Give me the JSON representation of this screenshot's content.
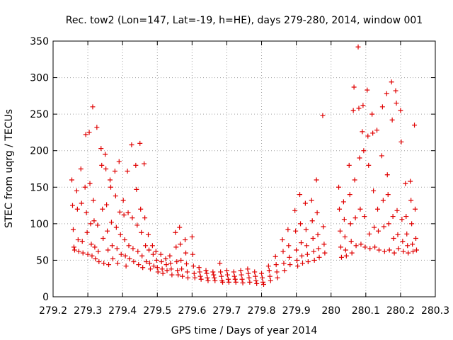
{
  "chart_data": {
    "type": "scatter",
    "title": "Rec. tow2 (Lon=147, Lat=-19, h=HE), days 279-280, 2014, window 001",
    "xlabel": "GPS time / Days of year 2014",
    "ylabel": "STEC from uqrg / TECUs",
    "xlim": [
      279.2,
      280.3
    ],
    "ylim": [
      0,
      350
    ],
    "xticks": [
      "279.2",
      "279.3",
      "279.4",
      "279.5",
      "279.6",
      "279.7",
      "279.8",
      "279.9",
      "280",
      "280.1",
      "280.2",
      "280.3"
    ],
    "yticks": [
      "0",
      "50",
      "100",
      "150",
      "200",
      "250",
      "300",
      "350"
    ],
    "grid": true,
    "marker": "+",
    "color": "#e00000",
    "series": [
      {
        "values": [
          [
            279.254,
            160
          ],
          [
            279.256,
            125
          ],
          [
            279.258,
            92
          ],
          [
            279.26,
            68
          ],
          [
            279.262,
            64
          ],
          [
            279.268,
            145
          ],
          [
            279.27,
            120
          ],
          [
            279.272,
            78
          ],
          [
            279.274,
            62
          ],
          [
            279.28,
            175
          ],
          [
            279.282,
            128
          ],
          [
            279.284,
            76
          ],
          [
            279.286,
            60
          ],
          [
            279.292,
            150
          ],
          [
            279.294,
            222
          ],
          [
            279.296,
            115
          ],
          [
            279.298,
            88
          ],
          [
            279.3,
            58
          ],
          [
            279.304,
            225
          ],
          [
            279.306,
            155
          ],
          [
            279.308,
            100
          ],
          [
            279.31,
            72
          ],
          [
            279.312,
            56
          ],
          [
            279.314,
            260
          ],
          [
            279.316,
            132
          ],
          [
            279.318,
            104
          ],
          [
            279.32,
            68
          ],
          [
            279.322,
            52
          ],
          [
            279.326,
            232
          ],
          [
            279.328,
            98
          ],
          [
            279.33,
            62
          ],
          [
            279.332,
            48
          ],
          [
            279.338,
            203
          ],
          [
            279.34,
            180
          ],
          [
            279.342,
            120
          ],
          [
            279.344,
            80
          ],
          [
            279.346,
            46
          ],
          [
            279.35,
            195
          ],
          [
            279.352,
            175
          ],
          [
            279.354,
            126
          ],
          [
            279.356,
            90
          ],
          [
            279.358,
            64
          ],
          [
            279.36,
            44
          ],
          [
            279.364,
            160
          ],
          [
            279.366,
            150
          ],
          [
            279.368,
            102
          ],
          [
            279.37,
            70
          ],
          [
            279.372,
            52
          ],
          [
            279.378,
            172
          ],
          [
            279.38,
            138
          ],
          [
            279.382,
            95
          ],
          [
            279.384,
            66
          ],
          [
            279.386,
            46
          ],
          [
            279.39,
            185
          ],
          [
            279.392,
            116
          ],
          [
            279.394,
            85
          ],
          [
            279.396,
            58
          ],
          [
            279.402,
            132
          ],
          [
            279.404,
            112
          ],
          [
            279.406,
            78
          ],
          [
            279.408,
            56
          ],
          [
            279.41,
            42
          ],
          [
            279.414,
            172
          ],
          [
            279.416,
            115
          ],
          [
            279.418,
            70
          ],
          [
            279.42,
            52
          ],
          [
            279.426,
            208
          ],
          [
            279.428,
            108
          ],
          [
            279.43,
            66
          ],
          [
            279.432,
            48
          ],
          [
            279.438,
            180
          ],
          [
            279.44,
            147
          ],
          [
            279.442,
            98
          ],
          [
            279.444,
            62
          ],
          [
            279.446,
            44
          ],
          [
            279.45,
            210
          ],
          [
            279.452,
            120
          ],
          [
            279.454,
            88
          ],
          [
            279.456,
            56
          ],
          [
            279.458,
            40
          ],
          [
            279.462,
            182
          ],
          [
            279.464,
            108
          ],
          [
            279.466,
            70
          ],
          [
            279.468,
            48
          ],
          [
            279.474,
            85
          ],
          [
            279.476,
            64
          ],
          [
            279.478,
            46
          ],
          [
            279.48,
            38
          ],
          [
            279.486,
            70
          ],
          [
            279.488,
            58
          ],
          [
            279.49,
            42
          ],
          [
            279.496,
            62
          ],
          [
            279.498,
            50
          ],
          [
            279.5,
            40
          ],
          [
            279.502,
            34
          ],
          [
            279.51,
            58
          ],
          [
            279.512,
            48
          ],
          [
            279.514,
            38
          ],
          [
            279.516,
            32
          ],
          [
            279.524,
            52
          ],
          [
            279.526,
            44
          ],
          [
            279.528,
            36
          ],
          [
            279.536,
            56
          ],
          [
            279.538,
            46
          ],
          [
            279.54,
            38
          ],
          [
            279.542,
            30
          ],
          [
            279.552,
            88
          ],
          [
            279.554,
            68
          ],
          [
            279.556,
            48
          ],
          [
            279.558,
            36
          ],
          [
            279.56,
            30
          ],
          [
            279.564,
            95
          ],
          [
            279.566,
            72
          ],
          [
            279.568,
            50
          ],
          [
            279.57,
            38
          ],
          [
            279.572,
            28
          ],
          [
            279.58,
            78
          ],
          [
            279.582,
            60
          ],
          [
            279.584,
            45
          ],
          [
            279.586,
            34
          ],
          [
            279.588,
            26
          ],
          [
            279.6,
            82
          ],
          [
            279.602,
            58
          ],
          [
            279.604,
            42
          ],
          [
            279.606,
            32
          ],
          [
            279.608,
            26
          ],
          [
            279.62,
            40
          ],
          [
            279.622,
            34
          ],
          [
            279.624,
            28
          ],
          [
            279.626,
            24
          ],
          [
            279.64,
            36
          ],
          [
            279.642,
            32
          ],
          [
            279.644,
            26
          ],
          [
            279.646,
            22
          ],
          [
            279.66,
            34
          ],
          [
            279.662,
            30
          ],
          [
            279.664,
            26
          ],
          [
            279.666,
            22
          ],
          [
            279.68,
            46
          ],
          [
            279.682,
            34
          ],
          [
            279.684,
            28
          ],
          [
            279.686,
            22
          ],
          [
            279.688,
            20
          ],
          [
            279.7,
            36
          ],
          [
            279.702,
            30
          ],
          [
            279.704,
            24
          ],
          [
            279.706,
            20
          ],
          [
            279.72,
            34
          ],
          [
            279.722,
            28
          ],
          [
            279.724,
            24
          ],
          [
            279.726,
            20
          ],
          [
            279.74,
            36
          ],
          [
            279.742,
            30
          ],
          [
            279.744,
            24
          ],
          [
            279.746,
            19
          ],
          [
            279.76,
            38
          ],
          [
            279.762,
            32
          ],
          [
            279.764,
            26
          ],
          [
            279.766,
            20
          ],
          [
            279.78,
            34
          ],
          [
            279.782,
            28
          ],
          [
            279.784,
            22
          ],
          [
            279.786,
            18
          ],
          [
            279.8,
            32
          ],
          [
            279.802,
            26
          ],
          [
            279.804,
            20
          ],
          [
            279.806,
            17
          ],
          [
            279.82,
            42
          ],
          [
            279.822,
            36
          ],
          [
            279.824,
            28
          ],
          [
            279.826,
            22
          ],
          [
            279.84,
            55
          ],
          [
            279.842,
            44
          ],
          [
            279.844,
            34
          ],
          [
            279.846,
            26
          ],
          [
            279.86,
            78
          ],
          [
            279.862,
            62
          ],
          [
            279.864,
            46
          ],
          [
            279.866,
            36
          ],
          [
            279.876,
            92
          ],
          [
            279.878,
            70
          ],
          [
            279.88,
            54
          ],
          [
            279.882,
            44
          ],
          [
            279.896,
            118
          ],
          [
            279.898,
            90
          ],
          [
            279.9,
            64
          ],
          [
            279.902,
            50
          ],
          [
            279.904,
            42
          ],
          [
            279.91,
            140
          ],
          [
            279.912,
            100
          ],
          [
            279.914,
            74
          ],
          [
            279.916,
            56
          ],
          [
            279.918,
            46
          ],
          [
            279.926,
            128
          ],
          [
            279.928,
            92
          ],
          [
            279.93,
            70
          ],
          [
            279.932,
            58
          ],
          [
            279.934,
            48
          ],
          [
            279.944,
            132
          ],
          [
            279.946,
            104
          ],
          [
            279.948,
            80
          ],
          [
            279.95,
            62
          ],
          [
            279.952,
            50
          ],
          [
            279.958,
            160
          ],
          [
            279.96,
            115
          ],
          [
            279.962,
            85
          ],
          [
            279.964,
            66
          ],
          [
            279.966,
            54
          ],
          [
            279.976,
            248
          ],
          [
            279.978,
            96
          ],
          [
            279.98,
            72
          ],
          [
            279.982,
            60
          ],
          [
            280.022,
            150
          ],
          [
            280.024,
            120
          ],
          [
            280.026,
            90
          ],
          [
            280.028,
            68
          ],
          [
            280.03,
            54
          ],
          [
            280.036,
            130
          ],
          [
            280.038,
            106
          ],
          [
            280.04,
            82
          ],
          [
            280.042,
            64
          ],
          [
            280.044,
            56
          ],
          [
            280.052,
            180
          ],
          [
            280.054,
            140
          ],
          [
            280.056,
            100
          ],
          [
            280.058,
            76
          ],
          [
            280.06,
            60
          ],
          [
            280.064,
            255
          ],
          [
            280.066,
            287
          ],
          [
            280.068,
            160
          ],
          [
            280.07,
            108
          ],
          [
            280.072,
            70
          ],
          [
            280.078,
            342
          ],
          [
            280.08,
            258
          ],
          [
            280.082,
            190
          ],
          [
            280.084,
            120
          ],
          [
            280.086,
            72
          ],
          [
            280.09,
            226
          ],
          [
            280.092,
            262
          ],
          [
            280.094,
            200
          ],
          [
            280.096,
            110
          ],
          [
            280.098,
            68
          ],
          [
            280.104,
            283
          ],
          [
            280.106,
            220
          ],
          [
            280.108,
            180
          ],
          [
            280.11,
            86
          ],
          [
            280.112,
            66
          ],
          [
            280.118,
            250
          ],
          [
            280.12,
            224
          ],
          [
            280.122,
            145
          ],
          [
            280.124,
            95
          ],
          [
            280.126,
            68
          ],
          [
            280.132,
            228
          ],
          [
            280.134,
            120
          ],
          [
            280.136,
            90
          ],
          [
            280.138,
            64
          ],
          [
            280.146,
            193
          ],
          [
            280.148,
            260
          ],
          [
            280.15,
            132
          ],
          [
            280.152,
            96
          ],
          [
            280.154,
            62
          ],
          [
            280.16,
            278
          ],
          [
            280.162,
            167
          ],
          [
            280.164,
            140
          ],
          [
            280.166,
            100
          ],
          [
            280.168,
            64
          ],
          [
            280.174,
            294
          ],
          [
            280.176,
            242
          ],
          [
            280.178,
            110
          ],
          [
            280.18,
            80
          ],
          [
            280.182,
            60
          ],
          [
            280.186,
            282
          ],
          [
            280.188,
            265
          ],
          [
            280.19,
            118
          ],
          [
            280.192,
            85
          ],
          [
            280.194,
            66
          ],
          [
            280.2,
            255
          ],
          [
            280.202,
            212
          ],
          [
            280.204,
            106
          ],
          [
            280.206,
            76
          ],
          [
            280.208,
            62
          ],
          [
            280.214,
            155
          ],
          [
            280.216,
            110
          ],
          [
            280.218,
            86
          ],
          [
            280.22,
            70
          ],
          [
            280.222,
            60
          ],
          [
            280.228,
            158
          ],
          [
            280.23,
            132
          ],
          [
            280.232,
            100
          ],
          [
            280.234,
            72
          ],
          [
            280.236,
            62
          ],
          [
            280.24,
            235
          ],
          [
            280.242,
            120
          ],
          [
            280.244,
            80
          ],
          [
            280.246,
            64
          ]
        ]
      }
    ]
  }
}
